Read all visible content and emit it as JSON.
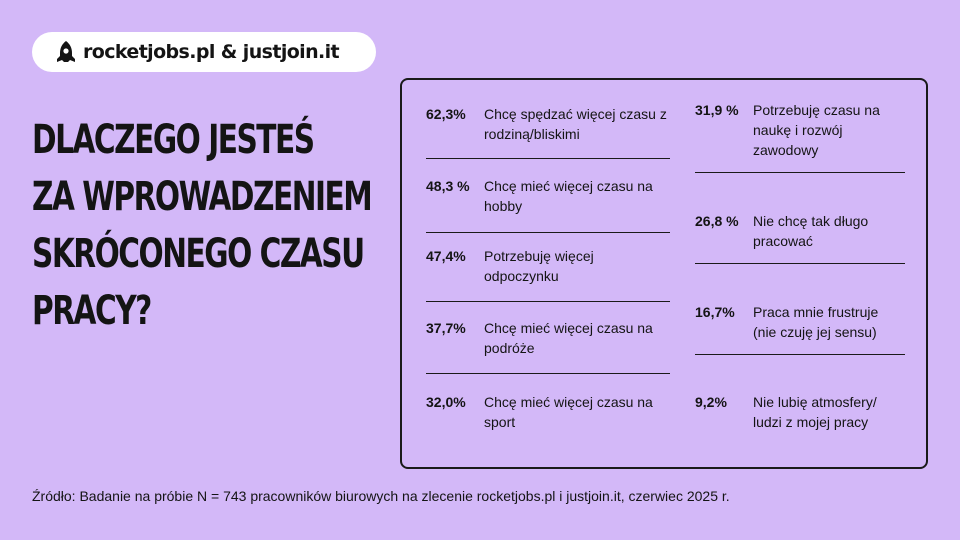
{
  "brand": {
    "text": "rocketjobs.pl & justjoin.it",
    "icon": "rocket-icon"
  },
  "headline": {
    "lines": [
      "Dlaczego jesteś",
      "za wprowadzeniem",
      "skróconego czasu",
      "pracy?"
    ]
  },
  "colors": {
    "background": "#d3b8f8",
    "text": "#141414",
    "brand_bg": "#ffffff"
  },
  "chart_data": {
    "type": "table",
    "title": "Dlaczego jesteś za wprowadzeniem skróconego czasu pracy?",
    "unit": "%",
    "columns": [
      [
        {
          "pct_text": "62,3%",
          "value": 62.3,
          "label": "Chcę spędzać więcej czasu z rodziną/bliskimi"
        },
        {
          "pct_text": "48,3 %",
          "value": 48.3,
          "label": "Chcę mieć więcej czasu na hobby"
        },
        {
          "pct_text": "47,4%",
          "value": 47.4,
          "label": "Potrzebuję więcej odpoczynku"
        },
        {
          "pct_text": "37,7%",
          "value": 37.7,
          "label": "Chcę mieć więcej czasu na podróże"
        },
        {
          "pct_text": "32,0%",
          "value": 32.0,
          "label": "Chcę mieć więcej czasu na sport"
        }
      ],
      [
        {
          "pct_text": "31,9 %",
          "value": 31.9,
          "label": "Potrzebuję czasu na naukę i rozwój zawodowy"
        },
        {
          "pct_text": "26,8 %",
          "value": 26.8,
          "label": "Nie chcę tak długo pracować"
        },
        {
          "pct_text": "16,7%",
          "value": 16.7,
          "label": "Praca mnie frustruje (nie czuję jej sensu)"
        },
        {
          "pct_text": "9,2%",
          "value": 9.2,
          "label": "Nie lubię atmosfery/ ludzi z mojej pracy"
        }
      ]
    ]
  },
  "source": "Źródło: Badanie na próbie N = 743 pracowników biurowych na zlecenie rocketjobs.pl i justjoin.it, czerwiec 2025 r."
}
